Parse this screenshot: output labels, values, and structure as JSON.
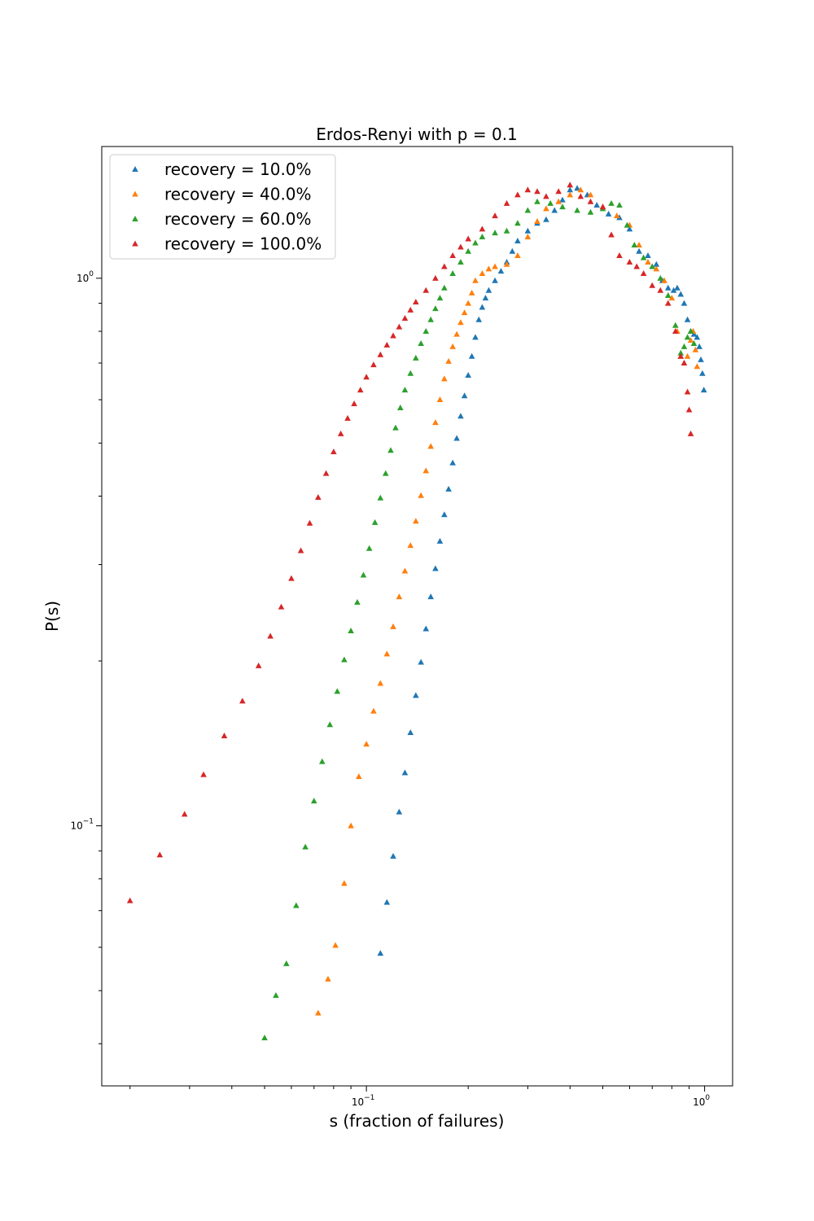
{
  "chart_data": {
    "type": "scatter",
    "title": "Erdos-Renyi with p = 0.1",
    "xlabel": "s (fraction of failures)",
    "ylabel": "P(s)",
    "xscale": "log",
    "yscale": "log",
    "xlim": [
      0.0165,
      1.21
    ],
    "ylim": [
      0.0335,
      1.74
    ],
    "xticks": [
      {
        "value": 0.1,
        "base": "10",
        "exp": "−1"
      },
      {
        "value": 1,
        "base": "10",
        "exp": "0"
      }
    ],
    "yticks": [
      {
        "value": 0.1,
        "base": "10",
        "exp": "−1"
      },
      {
        "value": 1,
        "base": "10",
        "exp": "0"
      }
    ],
    "grid": false,
    "legend_position": "top-left",
    "marker": "triangle-up",
    "series": [
      {
        "name": "recovery = 10.0%",
        "color": "#1f77b4",
        "points": [
          [
            0.11,
            0.0585
          ],
          [
            0.115,
            0.0725
          ],
          [
            0.12,
            0.088
          ],
          [
            0.125,
            0.106
          ],
          [
            0.13,
            0.125
          ],
          [
            0.135,
            0.148
          ],
          [
            0.14,
            0.173
          ],
          [
            0.145,
            0.199
          ],
          [
            0.15,
            0.229
          ],
          [
            0.155,
            0.262
          ],
          [
            0.16,
            0.295
          ],
          [
            0.165,
            0.331
          ],
          [
            0.17,
            0.37
          ],
          [
            0.175,
            0.412
          ],
          [
            0.18,
            0.46
          ],
          [
            0.185,
            0.51
          ],
          [
            0.19,
            0.56
          ],
          [
            0.195,
            0.61
          ],
          [
            0.2,
            0.665
          ],
          [
            0.205,
            0.72
          ],
          [
            0.21,
            0.78
          ],
          [
            0.215,
            0.84
          ],
          [
            0.22,
            0.885
          ],
          [
            0.225,
            0.92
          ],
          [
            0.23,
            0.95
          ],
          [
            0.24,
            0.99
          ],
          [
            0.25,
            1.03
          ],
          [
            0.26,
            1.07
          ],
          [
            0.27,
            1.12
          ],
          [
            0.28,
            1.17
          ],
          [
            0.3,
            1.22
          ],
          [
            0.32,
            1.26
          ],
          [
            0.34,
            1.28
          ],
          [
            0.36,
            1.33
          ],
          [
            0.38,
            1.39
          ],
          [
            0.4,
            1.45
          ],
          [
            0.42,
            1.46
          ],
          [
            0.45,
            1.42
          ],
          [
            0.48,
            1.36
          ],
          [
            0.52,
            1.31
          ],
          [
            0.56,
            1.29
          ],
          [
            0.6,
            1.23
          ],
          [
            0.64,
            1.12
          ],
          [
            0.68,
            1.1
          ],
          [
            0.72,
            1.06
          ],
          [
            0.75,
            0.99
          ],
          [
            0.78,
            0.96
          ],
          [
            0.81,
            0.95
          ],
          [
            0.83,
            0.96
          ],
          [
            0.85,
            0.935
          ],
          [
            0.87,
            0.9
          ],
          [
            0.89,
            0.84
          ],
          [
            0.91,
            0.8
          ],
          [
            0.93,
            0.79
          ],
          [
            0.95,
            0.78
          ],
          [
            0.965,
            0.75
          ],
          [
            0.975,
            0.71
          ],
          [
            0.985,
            0.67
          ],
          [
            0.995,
            0.625
          ]
        ]
      },
      {
        "name": "recovery = 40.0%",
        "color": "#ff7f0e",
        "points": [
          [
            0.072,
            0.0455
          ],
          [
            0.077,
            0.0525
          ],
          [
            0.081,
            0.0605
          ],
          [
            0.086,
            0.0785
          ],
          [
            0.09,
            0.1
          ],
          [
            0.095,
            0.123
          ],
          [
            0.1,
            0.141
          ],
          [
            0.105,
            0.162
          ],
          [
            0.11,
            0.182
          ],
          [
            0.115,
            0.206
          ],
          [
            0.12,
            0.231
          ],
          [
            0.125,
            0.262
          ],
          [
            0.13,
            0.292
          ],
          [
            0.135,
            0.325
          ],
          [
            0.14,
            0.36
          ],
          [
            0.145,
            0.401
          ],
          [
            0.15,
            0.445
          ],
          [
            0.155,
            0.493
          ],
          [
            0.16,
            0.545
          ],
          [
            0.165,
            0.6
          ],
          [
            0.17,
            0.655
          ],
          [
            0.175,
            0.705
          ],
          [
            0.18,
            0.75
          ],
          [
            0.185,
            0.79
          ],
          [
            0.19,
            0.83
          ],
          [
            0.195,
            0.865
          ],
          [
            0.2,
            0.9
          ],
          [
            0.205,
            0.94
          ],
          [
            0.21,
            0.99
          ],
          [
            0.22,
            1.02
          ],
          [
            0.23,
            1.04
          ],
          [
            0.24,
            1.05
          ],
          [
            0.26,
            1.06
          ],
          [
            0.28,
            1.1
          ],
          [
            0.3,
            1.19
          ],
          [
            0.32,
            1.27
          ],
          [
            0.34,
            1.34
          ],
          [
            0.37,
            1.38
          ],
          [
            0.4,
            1.42
          ],
          [
            0.43,
            1.45
          ],
          [
            0.46,
            1.42
          ],
          [
            0.5,
            1.35
          ],
          [
            0.55,
            1.3
          ],
          [
            0.6,
            1.25
          ],
          [
            0.64,
            1.15
          ],
          [
            0.68,
            1.07
          ],
          [
            0.72,
            1.04
          ],
          [
            0.76,
            0.99
          ],
          [
            0.8,
            0.92
          ],
          [
            0.83,
            0.8
          ],
          [
            0.85,
            0.72
          ],
          [
            0.87,
            0.7
          ],
          [
            0.89,
            0.72
          ],
          [
            0.91,
            0.77
          ],
          [
            0.925,
            0.8
          ],
          [
            0.94,
            0.74
          ],
          [
            0.95,
            0.69
          ]
        ]
      },
      {
        "name": "recovery = 60.0%",
        "color": "#2ca02c",
        "points": [
          [
            0.05,
            0.041
          ],
          [
            0.054,
            0.049
          ],
          [
            0.058,
            0.056
          ],
          [
            0.062,
            0.0715
          ],
          [
            0.066,
            0.0915
          ],
          [
            0.07,
            0.111
          ],
          [
            0.074,
            0.131
          ],
          [
            0.078,
            0.153
          ],
          [
            0.082,
            0.176
          ],
          [
            0.086,
            0.201
          ],
          [
            0.09,
            0.227
          ],
          [
            0.094,
            0.256
          ],
          [
            0.098,
            0.287
          ],
          [
            0.102,
            0.321
          ],
          [
            0.106,
            0.358
          ],
          [
            0.11,
            0.397
          ],
          [
            0.114,
            0.44
          ],
          [
            0.118,
            0.485
          ],
          [
            0.122,
            0.533
          ],
          [
            0.126,
            0.58
          ],
          [
            0.13,
            0.625
          ],
          [
            0.135,
            0.67
          ],
          [
            0.14,
            0.715
          ],
          [
            0.145,
            0.76
          ],
          [
            0.15,
            0.8
          ],
          [
            0.155,
            0.84
          ],
          [
            0.16,
            0.88
          ],
          [
            0.165,
            0.92
          ],
          [
            0.17,
            0.96
          ],
          [
            0.18,
            1.02
          ],
          [
            0.19,
            1.07
          ],
          [
            0.2,
            1.12
          ],
          [
            0.21,
            1.16
          ],
          [
            0.22,
            1.19
          ],
          [
            0.24,
            1.21
          ],
          [
            0.26,
            1.22
          ],
          [
            0.28,
            1.26
          ],
          [
            0.3,
            1.33
          ],
          [
            0.32,
            1.38
          ],
          [
            0.35,
            1.37
          ],
          [
            0.38,
            1.35
          ],
          [
            0.42,
            1.33
          ],
          [
            0.46,
            1.32
          ],
          [
            0.5,
            1.34
          ],
          [
            0.53,
            1.37
          ],
          [
            0.56,
            1.36
          ],
          [
            0.59,
            1.25
          ],
          [
            0.62,
            1.15
          ],
          [
            0.66,
            1.09
          ],
          [
            0.7,
            1.05
          ],
          [
            0.74,
            1.0
          ],
          [
            0.78,
            0.93
          ],
          [
            0.82,
            0.82
          ],
          [
            0.85,
            0.73
          ],
          [
            0.87,
            0.75
          ],
          [
            0.89,
            0.78
          ],
          [
            0.91,
            0.8
          ],
          [
            0.93,
            0.76
          ]
        ]
      },
      {
        "name": "recovery = 100.0%",
        "color": "#d62728",
        "points": [
          [
            0.02,
            0.073
          ],
          [
            0.0245,
            0.0885
          ],
          [
            0.029,
            0.105
          ],
          [
            0.033,
            0.124
          ],
          [
            0.038,
            0.146
          ],
          [
            0.043,
            0.169
          ],
          [
            0.048,
            0.196
          ],
          [
            0.052,
            0.222
          ],
          [
            0.056,
            0.251
          ],
          [
            0.06,
            0.283
          ],
          [
            0.064,
            0.318
          ],
          [
            0.068,
            0.357
          ],
          [
            0.072,
            0.398
          ],
          [
            0.076,
            0.44
          ],
          [
            0.08,
            0.482
          ],
          [
            0.084,
            0.52
          ],
          [
            0.088,
            0.555
          ],
          [
            0.092,
            0.59
          ],
          [
            0.096,
            0.625
          ],
          [
            0.1,
            0.66
          ],
          [
            0.105,
            0.695
          ],
          [
            0.11,
            0.725
          ],
          [
            0.115,
            0.755
          ],
          [
            0.12,
            0.785
          ],
          [
            0.125,
            0.815
          ],
          [
            0.13,
            0.845
          ],
          [
            0.135,
            0.875
          ],
          [
            0.14,
            0.905
          ],
          [
            0.15,
            0.95
          ],
          [
            0.16,
            1.0
          ],
          [
            0.17,
            1.05
          ],
          [
            0.18,
            1.1
          ],
          [
            0.19,
            1.14
          ],
          [
            0.2,
            1.18
          ],
          [
            0.22,
            1.23
          ],
          [
            0.24,
            1.3
          ],
          [
            0.26,
            1.37
          ],
          [
            0.28,
            1.42
          ],
          [
            0.3,
            1.45
          ],
          [
            0.32,
            1.44
          ],
          [
            0.34,
            1.41
          ],
          [
            0.37,
            1.44
          ],
          [
            0.4,
            1.48
          ],
          [
            0.43,
            1.41
          ],
          [
            0.46,
            1.38
          ],
          [
            0.5,
            1.35
          ],
          [
            0.53,
            1.2
          ],
          [
            0.56,
            1.1
          ],
          [
            0.6,
            1.07
          ],
          [
            0.63,
            1.05
          ],
          [
            0.66,
            1.02
          ],
          [
            0.7,
            0.97
          ],
          [
            0.74,
            0.95
          ],
          [
            0.78,
            0.9
          ],
          [
            0.82,
            0.8
          ],
          [
            0.85,
            0.72
          ],
          [
            0.87,
            0.7
          ],
          [
            0.89,
            0.62
          ],
          [
            0.9,
            0.575
          ],
          [
            0.91,
            0.52
          ]
        ]
      }
    ]
  }
}
